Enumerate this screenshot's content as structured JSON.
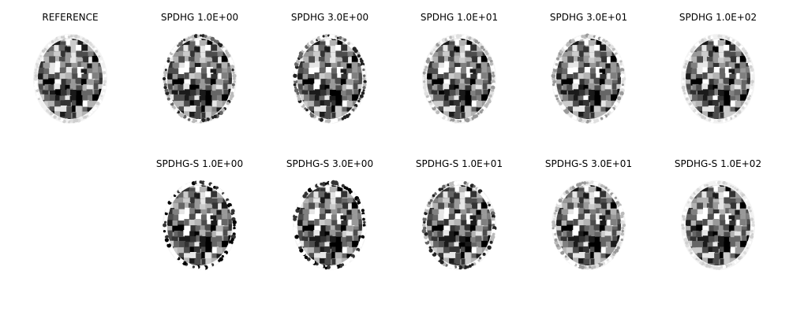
{
  "figure": {
    "background": "#ffffff",
    "text_color": "#000000",
    "panels": [
      {
        "label": "REFERENCE",
        "content": "brain-slice-reconstruction",
        "rim": "faint"
      },
      {
        "label": "SPDHG 1.0E+00",
        "content": "brain-slice-reconstruction",
        "rim": "dark-speckled"
      },
      {
        "label": "SPDHG 3.0E+00",
        "content": "brain-slice-reconstruction",
        "rim": "dark-speckled"
      },
      {
        "label": "SPDHG 1.0E+01",
        "content": "brain-slice-reconstruction",
        "rim": "medium"
      },
      {
        "label": "SPDHG 3.0E+01",
        "content": "brain-slice-reconstruction",
        "rim": "medium"
      },
      {
        "label": "SPDHG 1.0E+02",
        "content": "brain-slice-reconstruction",
        "rim": "faint"
      },
      {
        "label": "SPDHG-S 1.0E+00",
        "content": "brain-slice-reconstruction",
        "rim": "black-dotted"
      },
      {
        "label": "SPDHG-S 3.0E+00",
        "content": "brain-slice-reconstruction",
        "rim": "black-dotted"
      },
      {
        "label": "SPDHG-S 1.0E+01",
        "content": "brain-slice-reconstruction",
        "rim": "dark-speckled"
      },
      {
        "label": "SPDHG-S 3.0E+01",
        "content": "brain-slice-reconstruction",
        "rim": "medium"
      },
      {
        "label": "SPDHG-S 1.0E+02",
        "content": "brain-slice-reconstruction",
        "rim": "faint"
      }
    ]
  }
}
